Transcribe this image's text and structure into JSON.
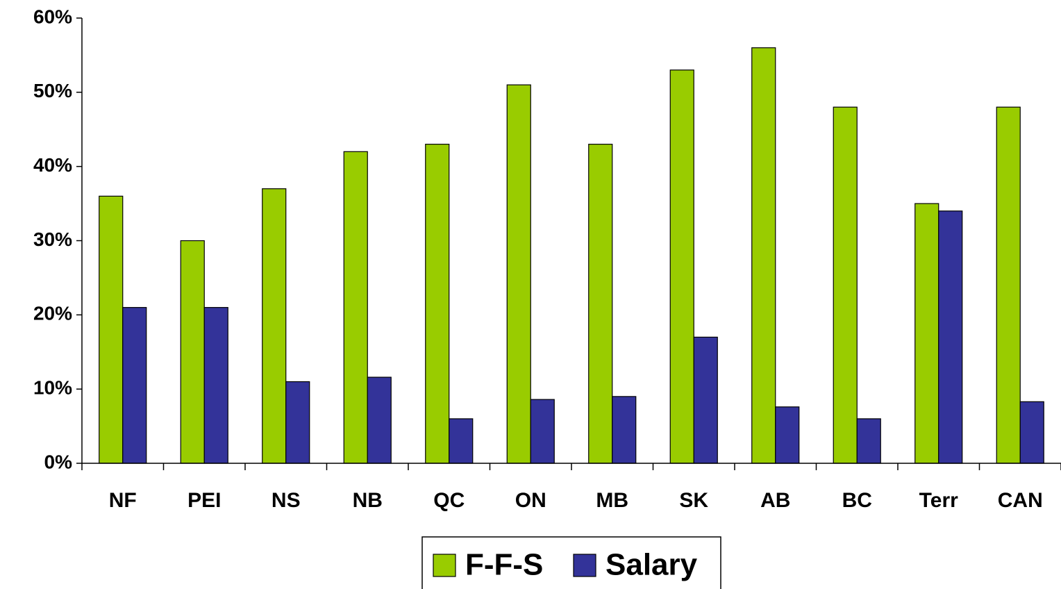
{
  "chart_data": {
    "type": "bar",
    "categories": [
      "NF",
      "PEI",
      "NS",
      "NB",
      "QC",
      "ON",
      "MB",
      "SK",
      "AB",
      "BC",
      "Terr",
      "CAN"
    ],
    "series": [
      {
        "name": "F-F-S",
        "color": "#99cc00",
        "values": [
          36,
          30,
          37,
          42,
          43,
          51,
          43,
          53,
          56,
          48,
          35,
          48
        ]
      },
      {
        "name": "Salary",
        "color": "#333399",
        "values": [
          21,
          21,
          11,
          11.6,
          6,
          8.6,
          9,
          17,
          7.6,
          6,
          34,
          8.3
        ]
      }
    ],
    "ylim": [
      0,
      60
    ],
    "yticks": [
      {
        "value": 0,
        "label": "0%"
      },
      {
        "value": 10,
        "label": "10%"
      },
      {
        "value": 20,
        "label": "20%"
      },
      {
        "value": 30,
        "label": "30%"
      },
      {
        "value": 40,
        "label": "40%"
      },
      {
        "value": 50,
        "label": "50%"
      },
      {
        "value": 60,
        "label": "60%"
      }
    ],
    "grid": false,
    "legend": "bottom"
  }
}
